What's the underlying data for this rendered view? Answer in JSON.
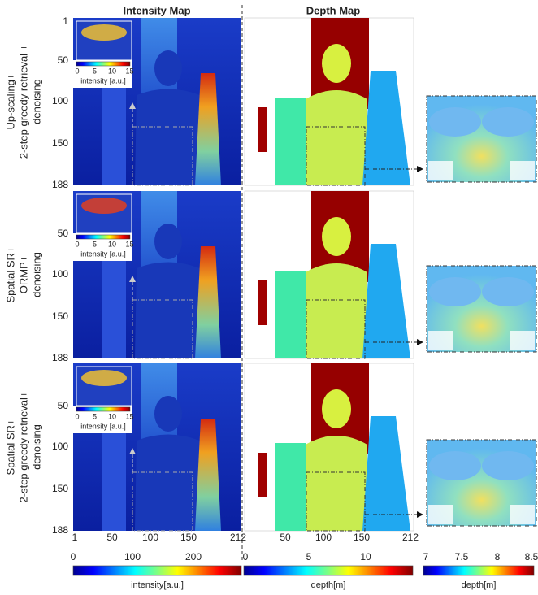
{
  "column_titles": [
    "Intensity Map",
    "Depth Map"
  ],
  "rows": [
    {
      "label_lines": [
        "Up-scaling+",
        "2-step greedy retrieval +",
        "denoising"
      ]
    },
    {
      "label_lines": [
        "Spatial SR+",
        "ORMP+",
        "denoising"
      ]
    },
    {
      "label_lines": [
        "Spatial SR+",
        "2-step greedy retrieval+",
        "denoising"
      ]
    }
  ],
  "y_ticks": [
    1,
    50,
    100,
    150,
    188
  ],
  "x_ticks": [
    1,
    50,
    100,
    150,
    212
  ],
  "depth_x_ticks": [
    50,
    100,
    150,
    212
  ],
  "inset": {
    "ticks": [
      0,
      5,
      10,
      15
    ],
    "label": "intensity [a.u.]"
  },
  "colorbars": [
    {
      "ticks": [
        0,
        100,
        200
      ],
      "label": "intensity[a.u.]"
    },
    {
      "ticks": [
        0,
        5,
        10
      ],
      "label": "depth[m]"
    },
    {
      "ticks": [
        7,
        7.5,
        8,
        8.5
      ],
      "label": "depth[m]"
    }
  ]
}
